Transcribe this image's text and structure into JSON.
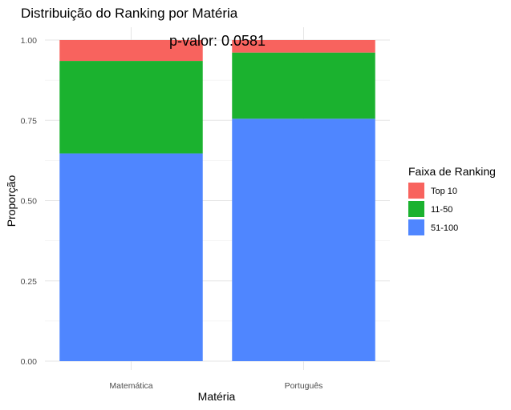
{
  "chart_data": {
    "type": "bar",
    "stacked": true,
    "title": "Distribuição do Ranking por Matéria",
    "xlabel": "Matéria",
    "ylabel": "Proporção",
    "categories": [
      "Matemática",
      "Português"
    ],
    "ylim": [
      0,
      1
    ],
    "yticks": [
      "0.00",
      "0.25",
      "0.50",
      "0.75",
      "1.00"
    ],
    "series": [
      {
        "name": "51-100",
        "values": [
          0.647,
          0.755
        ],
        "color": "#4F86FF"
      },
      {
        "name": "11-50",
        "values": [
          0.288,
          0.206
        ],
        "color": "#1BB22F"
      },
      {
        "name": "Top 10",
        "values": [
          0.065,
          0.039
        ],
        "color": "#F8635E"
      }
    ],
    "legend": {
      "title": "Faixa de Ranking",
      "position": "right",
      "entries": [
        "Top 10",
        "11-50",
        "51-100"
      ]
    },
    "annotation": {
      "text": "p-valor: 0.0581",
      "x": 1.5,
      "y": 1.0
    },
    "grid": true
  }
}
